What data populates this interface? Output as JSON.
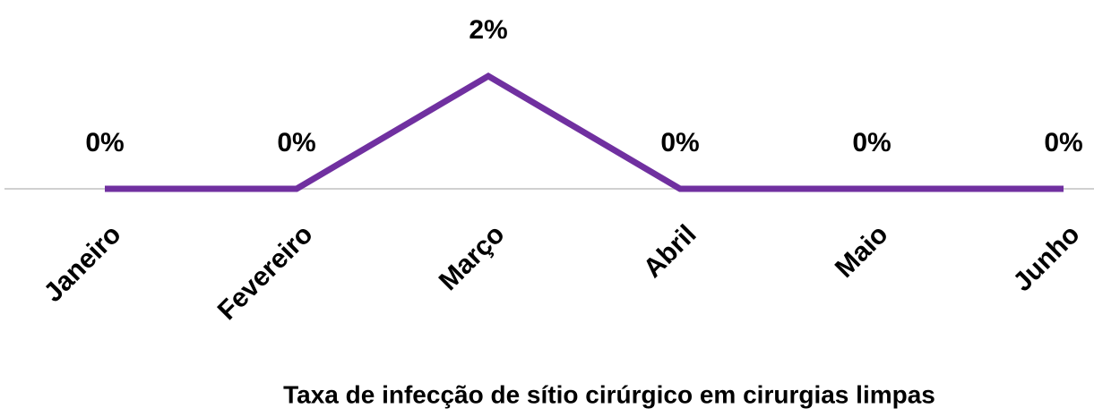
{
  "chart_data": {
    "type": "line",
    "title": "Taxa de infecção de sítio cirúrgico em cirurgias limpas",
    "categories": [
      "Janeiro",
      "Fevereiro",
      "Março",
      "Abril",
      "Maio",
      "Junho"
    ],
    "series": [
      {
        "color": "#7030a0",
        "values": [
          0,
          0,
          2,
          0,
          0,
          0
        ],
        "value_labels": [
          "0%",
          "0%",
          "2%",
          "0%",
          "0%",
          "0%"
        ]
      }
    ]
  }
}
